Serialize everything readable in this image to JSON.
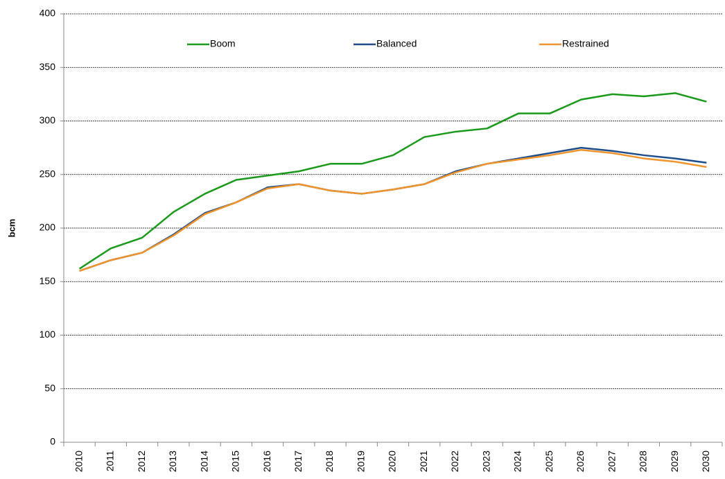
{
  "chart_data": {
    "type": "line",
    "ylabel": "bcm",
    "categories": [
      "2010",
      "2011",
      "2012",
      "2013",
      "2014",
      "2015",
      "2016",
      "2017",
      "2018",
      "2019",
      "2020",
      "2021",
      "2022",
      "2023",
      "2024",
      "2025",
      "2026",
      "2027",
      "2028",
      "2029",
      "2030"
    ],
    "series": [
      {
        "name": "Boom",
        "color": "#1a9a1a",
        "values": [
          162,
          181,
          191,
          215,
          232,
          245,
          249,
          253,
          260,
          260,
          268,
          285,
          290,
          293,
          307,
          307,
          320,
          325,
          323,
          326,
          318
        ]
      },
      {
        "name": "Balanced",
        "color": "#1f4e8c",
        "values": [
          160,
          170,
          177,
          194,
          214,
          224,
          238,
          241,
          235,
          232,
          236,
          241,
          253,
          260,
          265,
          270,
          275,
          272,
          268,
          265,
          261
        ]
      },
      {
        "name": "Restrained",
        "color": "#f0932b",
        "values": [
          160,
          170,
          177,
          193,
          213,
          224,
          237,
          241,
          235,
          232,
          236,
          241,
          252,
          260,
          264,
          268,
          273,
          270,
          265,
          262,
          257
        ]
      }
    ],
    "ylim": [
      0,
      400
    ],
    "yticks": [
      0,
      50,
      100,
      150,
      200,
      250,
      300,
      350,
      400
    ],
    "grid": true,
    "legend": "top"
  }
}
